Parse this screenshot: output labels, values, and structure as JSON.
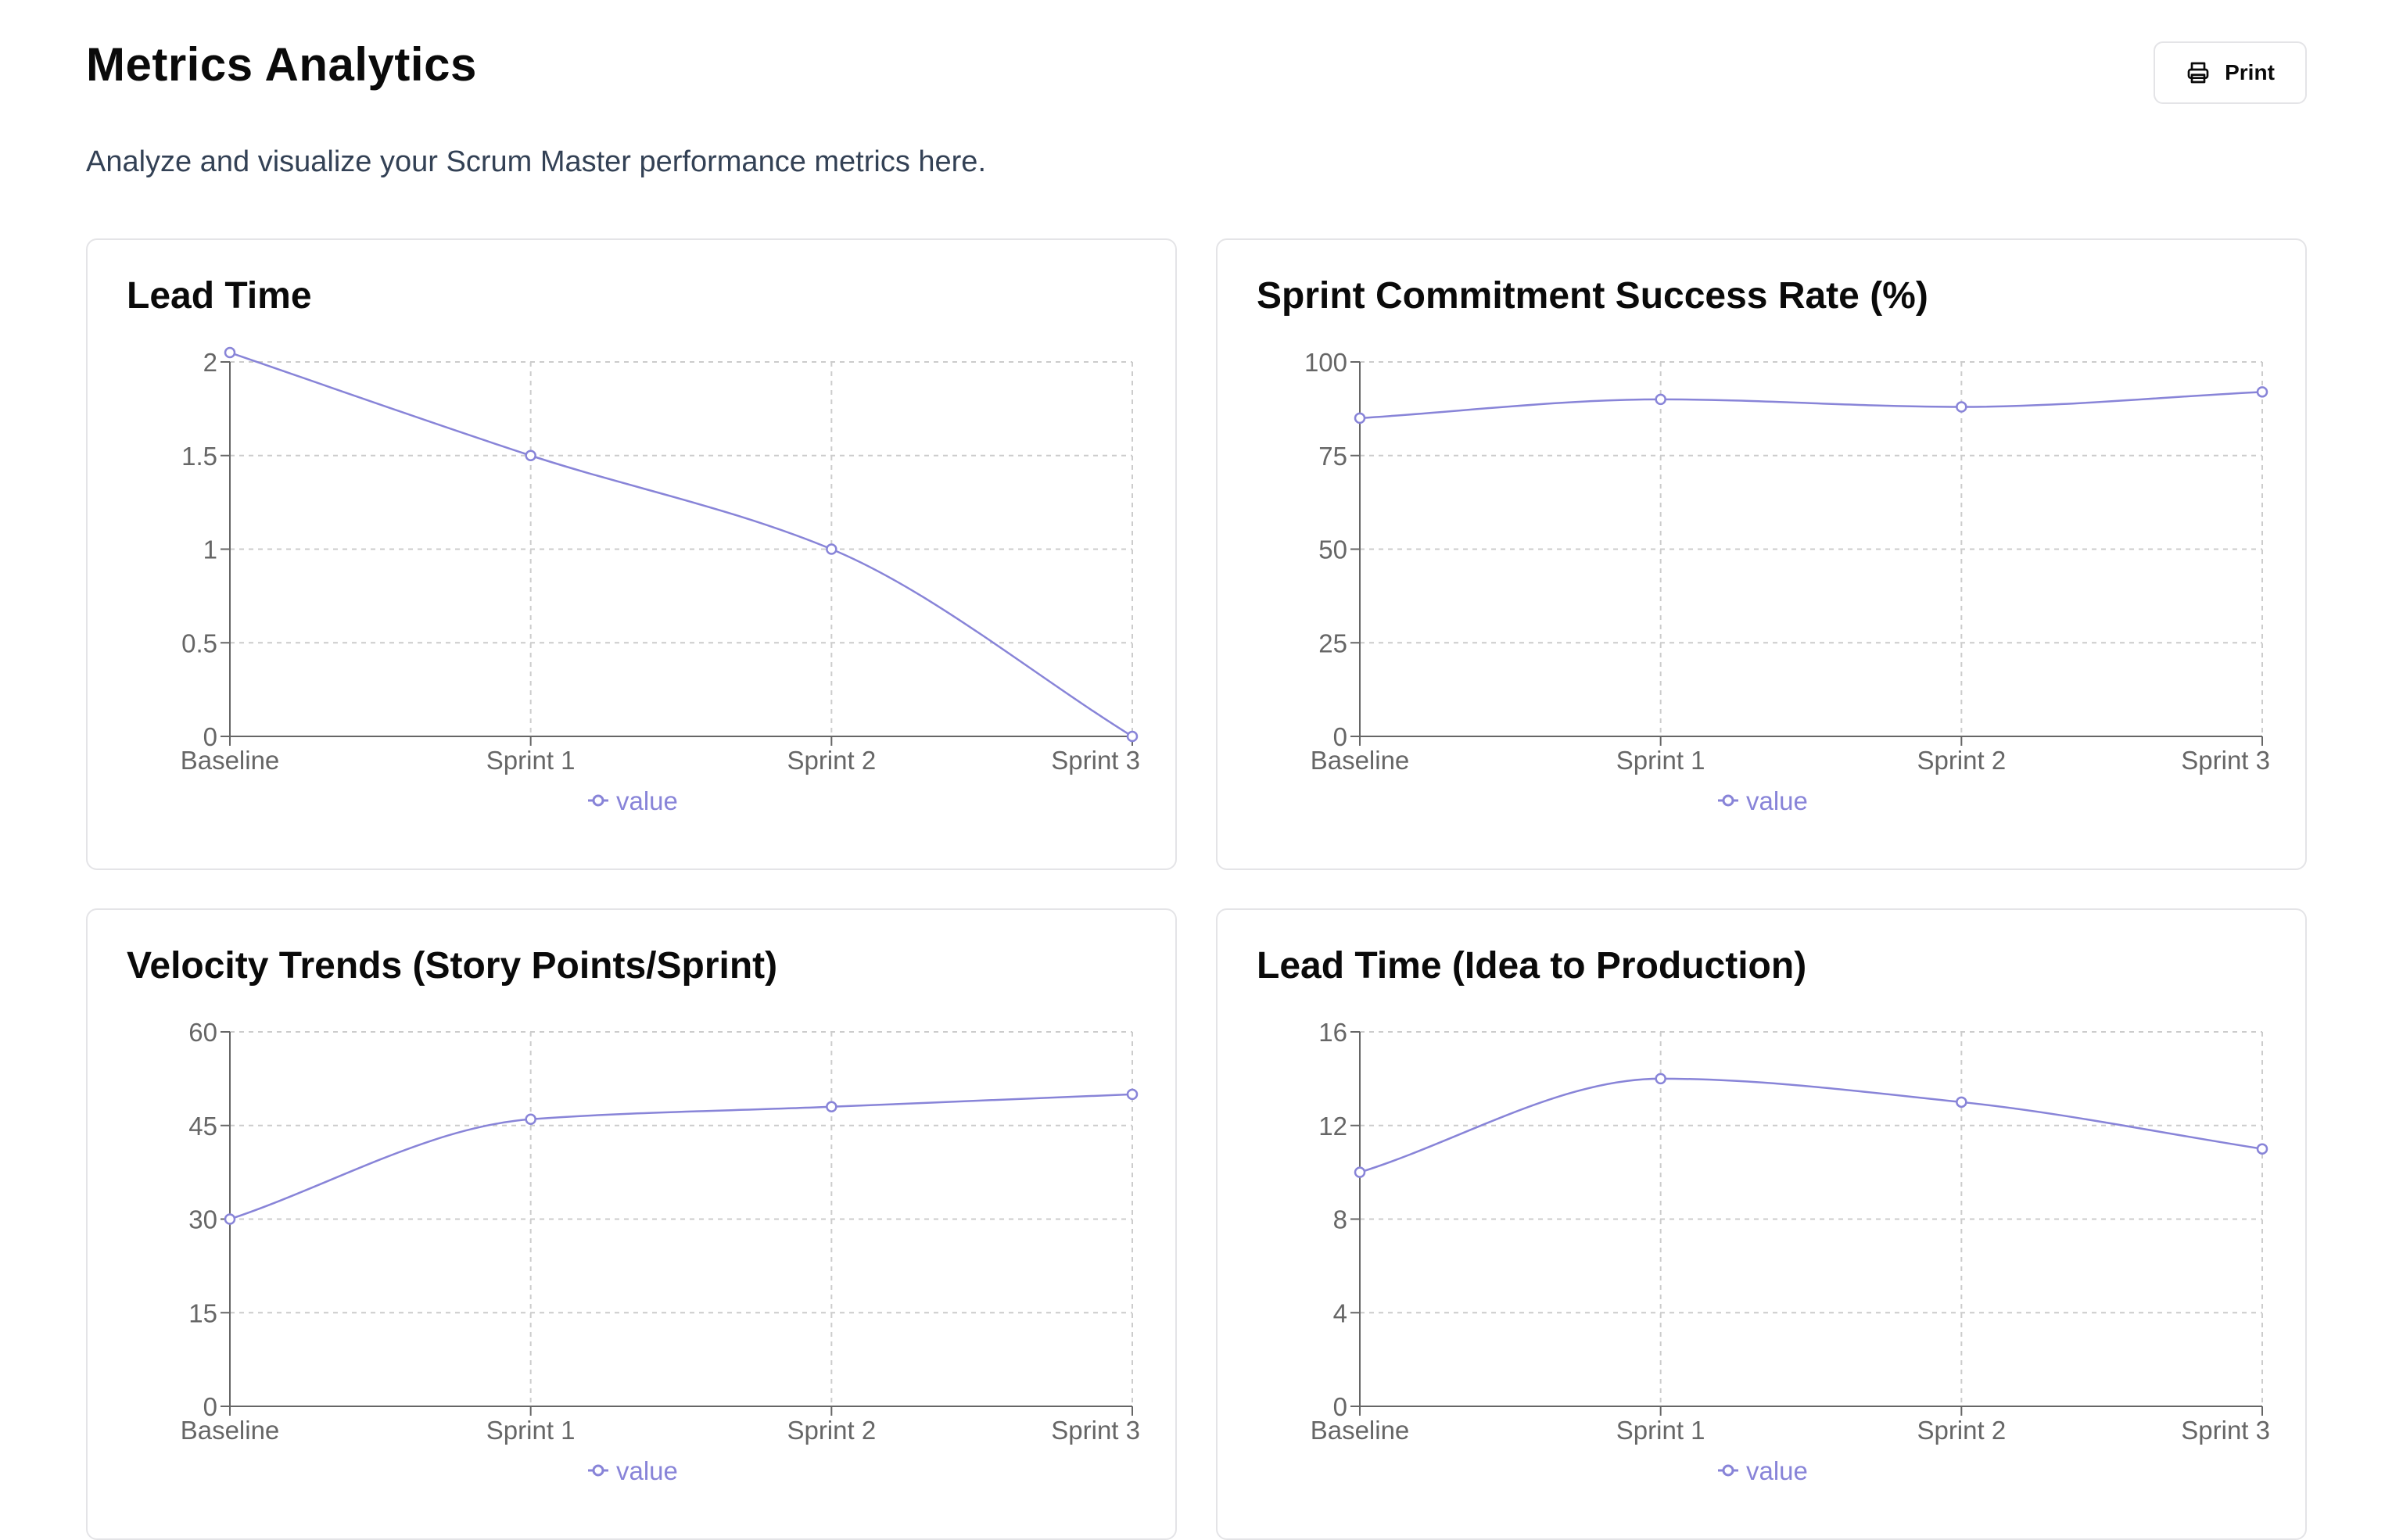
{
  "header": {
    "title": "Metrics Analytics",
    "subtitle": "Analyze and visualize your Scrum Master performance metrics here.",
    "print_label": "Print",
    "print_icon": "printer-icon"
  },
  "colors": {
    "series": "#8884d8",
    "axis": "#666666",
    "grid": "#cccccc"
  },
  "chart_data": [
    {
      "type": "line",
      "title": "Lead Time",
      "categories": [
        "Baseline",
        "Sprint 1",
        "Sprint 2",
        "Sprint 3"
      ],
      "series": [
        {
          "name": "value",
          "values": [
            2.05,
            1.5,
            1.0,
            0.0
          ]
        }
      ],
      "ylim": [
        0,
        2
      ],
      "yticks": [
        "0",
        "0.5",
        "1",
        "1.5",
        "2"
      ],
      "grid": true,
      "legend": "bottom-center"
    },
    {
      "type": "line",
      "title": "Sprint Commitment Success Rate (%)",
      "categories": [
        "Baseline",
        "Sprint 1",
        "Sprint 2",
        "Sprint 3"
      ],
      "series": [
        {
          "name": "value",
          "values": [
            85,
            90,
            88,
            92
          ]
        }
      ],
      "ylim": [
        0,
        100
      ],
      "yticks": [
        "0",
        "25",
        "50",
        "75",
        "100"
      ],
      "grid": true,
      "legend": "bottom-center"
    },
    {
      "type": "line",
      "title": "Velocity Trends (Story Points/Sprint)",
      "categories": [
        "Baseline",
        "Sprint 1",
        "Sprint 2",
        "Sprint 3"
      ],
      "series": [
        {
          "name": "value",
          "values": [
            30,
            46,
            48,
            50
          ]
        }
      ],
      "ylim": [
        0,
        60
      ],
      "yticks": [
        "0",
        "15",
        "30",
        "45",
        "60"
      ],
      "grid": true,
      "legend": "bottom-center"
    },
    {
      "type": "line",
      "title": "Lead Time (Idea to Production)",
      "categories": [
        "Baseline",
        "Sprint 1",
        "Sprint 2",
        "Sprint 3"
      ],
      "series": [
        {
          "name": "value",
          "values": [
            10,
            14,
            13,
            11
          ]
        }
      ],
      "ylim": [
        0,
        16
      ],
      "yticks": [
        "0",
        "4",
        "8",
        "12",
        "16"
      ],
      "grid": true,
      "legend": "bottom-center"
    }
  ]
}
